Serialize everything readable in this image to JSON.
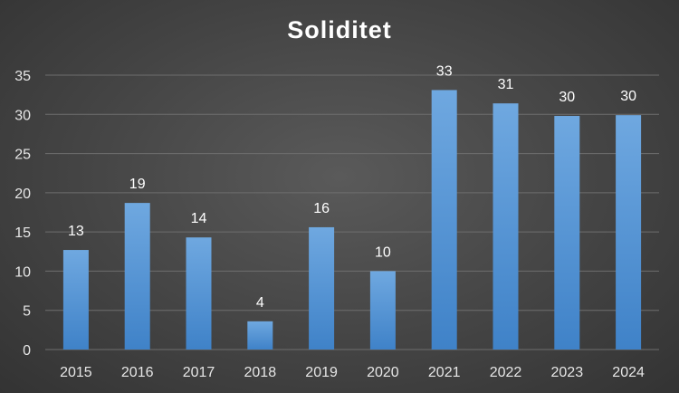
{
  "chart_data": {
    "type": "bar",
    "title": "Soliditet",
    "xlabel": "",
    "ylabel": "",
    "categories": [
      "2015",
      "2016",
      "2017",
      "2018",
      "2019",
      "2020",
      "2021",
      "2022",
      "2023",
      "2024"
    ],
    "values": [
      12.7,
      18.7,
      14.3,
      3.6,
      15.6,
      10.0,
      33.1,
      31.4,
      29.8,
      29.9
    ],
    "data_labels": [
      "13",
      "19",
      "14",
      "4",
      "16",
      "10",
      "33",
      "31",
      "30",
      "30"
    ],
    "ylim": [
      0,
      35
    ],
    "yticks": [
      0,
      5,
      10,
      15,
      20,
      25,
      30,
      35
    ],
    "grid": true,
    "legend": "none",
    "colors": {
      "bar_top": "#6fa8e0",
      "bar_bottom": "#3f82c8",
      "gridline": "#6e6e6e",
      "background": "#444444"
    }
  }
}
